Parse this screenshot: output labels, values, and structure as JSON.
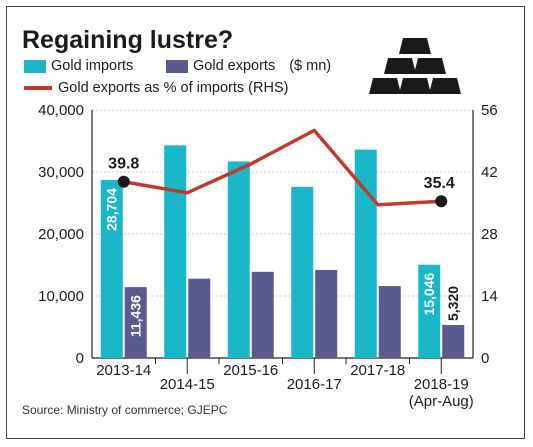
{
  "chart_data": {
    "type": "bar",
    "title": "Regaining lustre?",
    "categories": [
      "2013-14",
      "2014-15",
      "2015-16",
      "2016-17",
      "2017-18",
      "2018-19"
    ],
    "category_sublabels": [
      "",
      "",
      "",
      "",
      "",
      "(Apr-Aug)"
    ],
    "series": [
      {
        "name": "Gold imports",
        "values": [
          28704,
          34300,
          31700,
          27600,
          33600,
          15046
        ],
        "color": "#1ab7c9",
        "labels": [
          "28,704",
          "",
          "",
          "",
          "",
          "15,046"
        ]
      },
      {
        "name": "Gold exports",
        "values": [
          11436,
          12800,
          13900,
          14200,
          11600,
          5320
        ],
        "color": "#5b5a8f",
        "labels": [
          "11,436",
          "",
          "",
          "",
          "",
          "5,320"
        ]
      }
    ],
    "line_series": {
      "name": "Gold exports as % of imports (RHS)",
      "values": [
        39.8,
        37.3,
        43.8,
        51.4,
        34.6,
        35.4
      ],
      "color": "#c0392b",
      "labels": [
        "39.8",
        "",
        "",
        "",
        "",
        "35.4"
      ]
    },
    "units_label": "($ mn)",
    "ylim": [
      0,
      40000
    ],
    "y_ticks": [
      "0",
      "10,000",
      "20,000",
      "30,000",
      "40,000"
    ],
    "y2lim": [
      0,
      56
    ],
    "y2_ticks": [
      "0",
      "14",
      "28",
      "42",
      "56"
    ],
    "source": "Source: Ministry of commerce; GJEPC"
  }
}
